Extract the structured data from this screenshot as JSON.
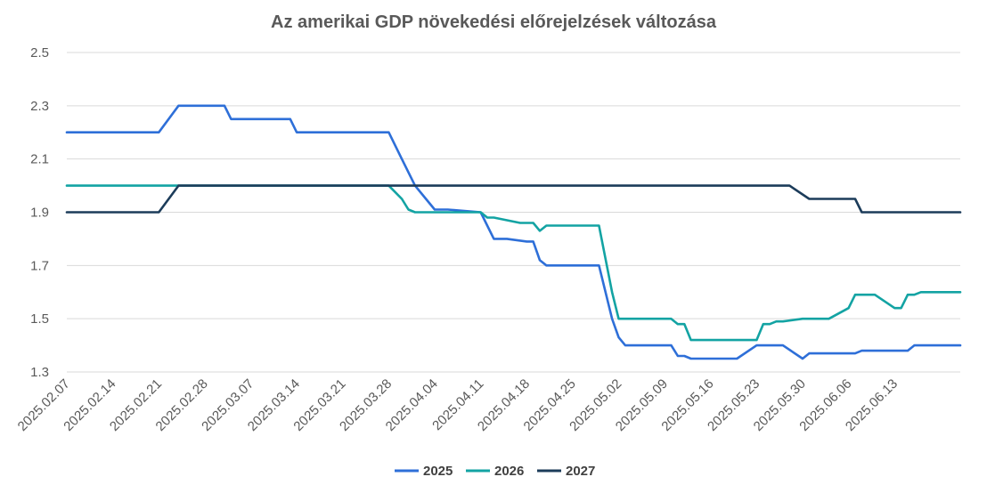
{
  "chart_data": {
    "type": "line",
    "title": "Az amerikai GDP növekedési előrejelzések változása",
    "xlabel": "",
    "ylabel": "",
    "ylim": [
      1.3,
      2.5
    ],
    "yticks": [
      "2.5",
      "2.3",
      "2.1",
      "1.9",
      "1.7",
      "1.5",
      "1.3"
    ],
    "x_tick_labels": [
      "2025.02.07",
      "2025.02.14",
      "2025.02.21",
      "2025.02.28",
      "2025.03.07",
      "2025.03.14",
      "2025.03.21",
      "2025.03.28",
      "2025.04.04",
      "2025.04.11",
      "2025.04.18",
      "2025.04.25",
      "2025.05.02",
      "2025.05.09",
      "2025.05.16",
      "2025.05.23",
      "2025.05.30",
      "2025.06.06",
      "2025.06.13"
    ],
    "x_range_days": [
      0,
      136
    ],
    "grid": "horizontal",
    "legend": "bottom",
    "series": [
      {
        "name": "2025",
        "color": "#2E6FD8",
        "points": [
          [
            0,
            2.2
          ],
          [
            14,
            2.2
          ],
          [
            17,
            2.3
          ],
          [
            24,
            2.3
          ],
          [
            25,
            2.25
          ],
          [
            34,
            2.25
          ],
          [
            35,
            2.2
          ],
          [
            49,
            2.2
          ],
          [
            51,
            2.1
          ],
          [
            53,
            2.0
          ],
          [
            55,
            1.94
          ],
          [
            56,
            1.91
          ],
          [
            58,
            1.91
          ],
          [
            63,
            1.9
          ],
          [
            64,
            1.85
          ],
          [
            65,
            1.8
          ],
          [
            67,
            1.8
          ],
          [
            70,
            1.79
          ],
          [
            71,
            1.79
          ],
          [
            72,
            1.72
          ],
          [
            73,
            1.7
          ],
          [
            79,
            1.7
          ],
          [
            81,
            1.7
          ],
          [
            83,
            1.5
          ],
          [
            84,
            1.43
          ],
          [
            85,
            1.4
          ],
          [
            92,
            1.4
          ],
          [
            93,
            1.36
          ],
          [
            94,
            1.36
          ],
          [
            95,
            1.35
          ],
          [
            102,
            1.35
          ],
          [
            105,
            1.4
          ],
          [
            109,
            1.4
          ],
          [
            112,
            1.35
          ],
          [
            113,
            1.37
          ],
          [
            120,
            1.37
          ],
          [
            121,
            1.38
          ],
          [
            128,
            1.38
          ],
          [
            129,
            1.4
          ],
          [
            136,
            1.4
          ]
        ]
      },
      {
        "name": "2026",
        "color": "#13A3A3",
        "points": [
          [
            0,
            2.0
          ],
          [
            49,
            2.0
          ],
          [
            51,
            1.95
          ],
          [
            52,
            1.91
          ],
          [
            53,
            1.9
          ],
          [
            63,
            1.9
          ],
          [
            64,
            1.88
          ],
          [
            65,
            1.88
          ],
          [
            69,
            1.86
          ],
          [
            71,
            1.86
          ],
          [
            72,
            1.83
          ],
          [
            73,
            1.85
          ],
          [
            81,
            1.85
          ],
          [
            83,
            1.6
          ],
          [
            84,
            1.5
          ],
          [
            92,
            1.5
          ],
          [
            93,
            1.48
          ],
          [
            94,
            1.48
          ],
          [
            95,
            1.42
          ],
          [
            105,
            1.42
          ],
          [
            106,
            1.48
          ],
          [
            107,
            1.48
          ],
          [
            108,
            1.49
          ],
          [
            109,
            1.49
          ],
          [
            112,
            1.5
          ],
          [
            116,
            1.5
          ],
          [
            119,
            1.54
          ],
          [
            120,
            1.59
          ],
          [
            123,
            1.59
          ],
          [
            126,
            1.54
          ],
          [
            127,
            1.54
          ],
          [
            128,
            1.59
          ],
          [
            129,
            1.59
          ],
          [
            130,
            1.6
          ],
          [
            136,
            1.6
          ]
        ]
      },
      {
        "name": "2027",
        "color": "#1C3C5A",
        "points": [
          [
            0,
            1.9
          ],
          [
            14,
            1.9
          ],
          [
            17,
            2.0
          ],
          [
            110,
            2.0
          ],
          [
            113,
            1.95
          ],
          [
            120,
            1.95
          ],
          [
            121,
            1.9
          ],
          [
            136,
            1.9
          ]
        ]
      }
    ]
  }
}
